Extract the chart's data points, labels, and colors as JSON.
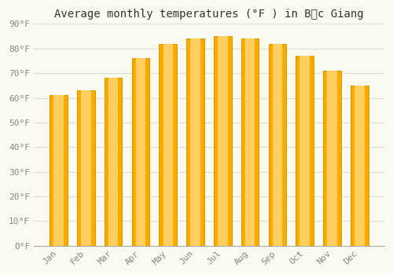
{
  "title": "Average monthly temperatures (°F ) in Bắc Giang",
  "months": [
    "Jan",
    "Feb",
    "Mar",
    "Apr",
    "May",
    "Jun",
    "Jul",
    "Aug",
    "Sep",
    "Oct",
    "Nov",
    "Dec"
  ],
  "values": [
    61.0,
    63.0,
    68.0,
    76.0,
    82.0,
    84.0,
    85.0,
    84.0,
    82.0,
    77.0,
    71.0,
    65.0
  ],
  "bar_color_main": "#FFAA00",
  "bar_color_light": "#FFD060",
  "bar_edge_color": "#C8A000",
  "ylim": [
    0,
    90
  ],
  "yticks": [
    0,
    10,
    20,
    30,
    40,
    50,
    60,
    70,
    80,
    90
  ],
  "ytick_labels": [
    "0°F",
    "10°F",
    "20°F",
    "30°F",
    "40°F",
    "50°F",
    "60°F",
    "70°F",
    "80°F",
    "90°F"
  ],
  "background_color": "#fafaf0",
  "grid_color": "#dddddd",
  "title_fontsize": 10,
  "tick_fontsize": 8,
  "font_family": "monospace",
  "tick_color": "#888888"
}
